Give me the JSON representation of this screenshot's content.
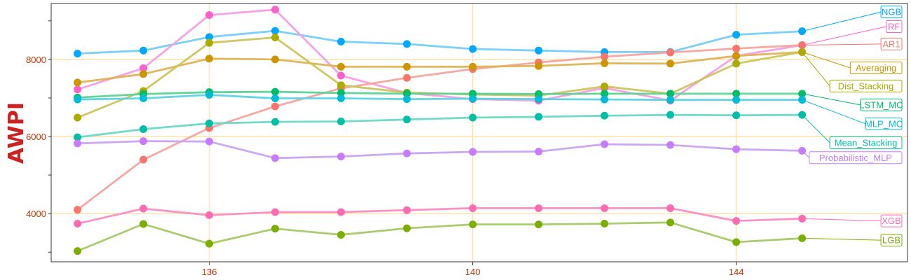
{
  "chart_data": {
    "type": "line",
    "title": "",
    "xlabel": "",
    "ylabel": "AWPI",
    "xlim": [
      133.6,
      146.6
    ],
    "ylim": [
      2750,
      9450
    ],
    "x_ticks": [
      136,
      140,
      144
    ],
    "x_tick_labels": [
      "136",
      "140",
      "144"
    ],
    "y_ticks": [
      4000,
      6000,
      8000
    ],
    "y_tick_labels": [
      "4000",
      "6000",
      "8000"
    ],
    "grid": true,
    "grid_color": "#ffe0a8",
    "legend": "right (direct labels)",
    "x": [
      134,
      135,
      136,
      137,
      138,
      139,
      140,
      141,
      142,
      143,
      144,
      145
    ],
    "series": [
      {
        "name": "NGB",
        "color": "#00a9ff",
        "line_color": "#74ccfa",
        "values": [
          8150,
          8230,
          8580,
          8740,
          8460,
          8400,
          8270,
          8230,
          8190,
          8190,
          8640,
          8730
        ],
        "label_y": 9230
      },
      {
        "name": "RF",
        "color": "#ff61cc",
        "line_color": "#f39fe2",
        "values": [
          7220,
          7770,
          9150,
          9290,
          7580,
          7130,
          6970,
          6930,
          7260,
          6930,
          8090,
          8370
        ],
        "label_y": 8850
      },
      {
        "name": "AR1",
        "color": "#f8766d",
        "line_color": "#f4a49e",
        "values": [
          4100,
          5400,
          6220,
          6780,
          7250,
          7520,
          7750,
          7920,
          8070,
          8180,
          8280,
          8370
        ],
        "label_y": 8400
      },
      {
        "name": "Averaging",
        "color": "#cd9600",
        "line_color": "#deb355",
        "values": [
          7400,
          7620,
          8020,
          8000,
          7810,
          7810,
          7810,
          7830,
          7900,
          7890,
          8090,
          8190
        ],
        "label_y": 7780
      },
      {
        "name": "Dist_Stacking",
        "color": "#abab00",
        "line_color": "#cbc45a",
        "values": [
          6490,
          7180,
          8430,
          8570,
          7330,
          7140,
          7090,
          7060,
          7300,
          7110,
          7890,
          8190
        ],
        "label_y": 7310
      },
      {
        "name": "LSTM_MC",
        "color": "#00be67",
        "line_color": "#5cd294",
        "values": [
          7010,
          7100,
          7150,
          7160,
          7130,
          7110,
          7110,
          7100,
          7110,
          7110,
          7110,
          7110
        ],
        "label_y": 6820
      },
      {
        "name": "MLP_MC",
        "color": "#00bcd8",
        "line_color": "#5dd2e2",
        "values": [
          6960,
          6990,
          7080,
          6990,
          6990,
          6970,
          6980,
          6970,
          6960,
          6950,
          6950,
          6950
        ],
        "label_y": 6330
      },
      {
        "name": "Mean_Stacking",
        "color": "#00bfa5",
        "line_color": "#6ad8c4",
        "values": [
          5980,
          6190,
          6340,
          6380,
          6390,
          6440,
          6490,
          6510,
          6540,
          6560,
          6550,
          6560
        ],
        "label_y": 5840
      },
      {
        "name": "Probabilistic_MLP",
        "color": "#c77cff",
        "line_color": "#c7a4f0",
        "values": [
          5820,
          5880,
          5870,
          5440,
          5480,
          5560,
          5600,
          5610,
          5800,
          5780,
          5670,
          5630
        ],
        "label_y": 5450
      },
      {
        "name": "XGB",
        "color": "#ff6bb0",
        "line_color": "#f98dc0",
        "values": [
          3740,
          4130,
          3960,
          4040,
          4040,
          4090,
          4140,
          4140,
          4140,
          4140,
          3810,
          3870
        ],
        "label_y": 3810
      },
      {
        "name": "LGB",
        "color": "#7cae00",
        "line_color": "#a6c966",
        "values": [
          3030,
          3730,
          3220,
          3610,
          3450,
          3620,
          3720,
          3720,
          3740,
          3770,
          3260,
          3360
        ],
        "label_y": 3310
      }
    ]
  }
}
